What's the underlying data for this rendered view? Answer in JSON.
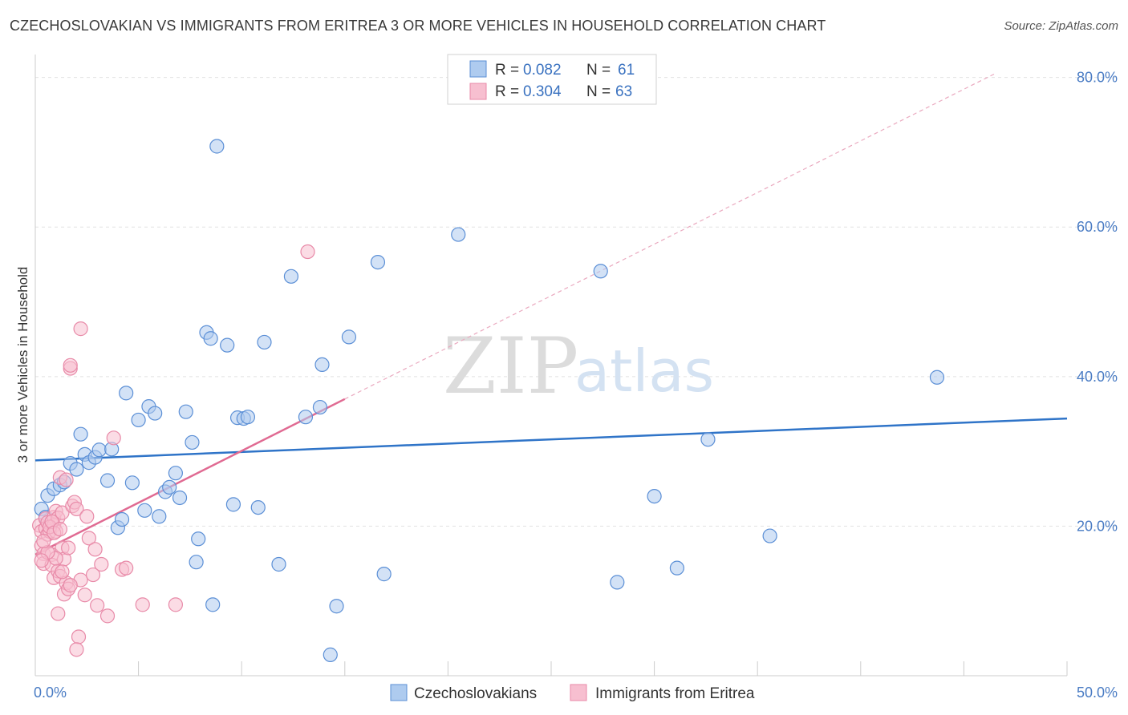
{
  "title": "CZECHOSLOVAKIAN VS IMMIGRANTS FROM ERITREA 3 OR MORE VEHICLES IN HOUSEHOLD CORRELATION CHART",
  "source": "Source: ZipAtlas.com",
  "watermark": {
    "zip": "ZIP",
    "atlas": "atlas"
  },
  "colors": {
    "czech_fill": "#aecbef",
    "czech_stroke": "#5b8fd6",
    "czech_line": "#2f74c8",
    "eritrea_fill": "#f7bfd0",
    "eritrea_stroke": "#e88aa8",
    "eritrea_line": "#e06a92",
    "grid": "#e2e2e2",
    "tick_label": "#4a7cc4"
  },
  "legend": {
    "rows": [
      {
        "r_label": "R =",
        "r_value": "0.082",
        "n_label": "N =",
        "n_value": "61"
      },
      {
        "r_label": "R =",
        "r_value": "0.304",
        "n_label": "N =",
        "n_value": "63"
      }
    ]
  },
  "chart_data": {
    "type": "scatter",
    "ylabel": "3 or more Vehicles in Household",
    "xlabel": "",
    "xlim": [
      0,
      50
    ],
    "ylim": [
      0,
      82
    ],
    "x_tick_labels": [
      {
        "value": 0,
        "label": "0.0%"
      },
      {
        "value": 50,
        "label": "50.0%"
      }
    ],
    "y_tick_labels": [
      {
        "value": 20,
        "label": "20.0%"
      },
      {
        "value": 40,
        "label": "40.0%"
      },
      {
        "value": 60,
        "label": "60.0%"
      },
      {
        "value": 80,
        "label": "80.0%"
      }
    ],
    "grid": true,
    "legend_position": "top-center",
    "series": [
      {
        "name": "Czechoslovakians",
        "trend": {
          "x": [
            0,
            50
          ],
          "y": [
            28.8,
            34.4
          ],
          "style": "solid"
        },
        "points": [
          [
            0.3,
            22.3
          ],
          [
            0.6,
            24.1
          ],
          [
            0.9,
            25.0
          ],
          [
            1.2,
            25.5
          ],
          [
            1.4,
            25.9
          ],
          [
            1.7,
            28.4
          ],
          [
            2.0,
            27.6
          ],
          [
            2.2,
            32.3
          ],
          [
            2.4,
            29.6
          ],
          [
            2.6,
            28.5
          ],
          [
            2.9,
            29.2
          ],
          [
            3.1,
            30.2
          ],
          [
            3.7,
            30.3
          ],
          [
            3.5,
            26.1
          ],
          [
            4.0,
            19.8
          ],
          [
            4.2,
            20.9
          ],
          [
            4.4,
            37.8
          ],
          [
            4.7,
            25.8
          ],
          [
            5.0,
            34.2
          ],
          [
            5.3,
            22.1
          ],
          [
            5.5,
            36.0
          ],
          [
            5.8,
            35.1
          ],
          [
            6.0,
            21.3
          ],
          [
            6.3,
            24.6
          ],
          [
            6.5,
            25.2
          ],
          [
            6.8,
            27.1
          ],
          [
            7.0,
            23.8
          ],
          [
            7.3,
            35.3
          ],
          [
            7.6,
            31.2
          ],
          [
            7.9,
            18.3
          ],
          [
            7.8,
            15.2
          ],
          [
            8.3,
            45.9
          ],
          [
            8.5,
            45.1
          ],
          [
            8.6,
            9.5
          ],
          [
            8.8,
            70.8
          ],
          [
            9.3,
            44.2
          ],
          [
            9.6,
            22.9
          ],
          [
            9.8,
            34.5
          ],
          [
            10.1,
            34.4
          ],
          [
            10.3,
            34.6
          ],
          [
            10.8,
            22.5
          ],
          [
            11.1,
            44.6
          ],
          [
            11.8,
            14.9
          ],
          [
            12.4,
            53.4
          ],
          [
            13.1,
            34.6
          ],
          [
            13.8,
            35.9
          ],
          [
            13.9,
            41.6
          ],
          [
            14.3,
            2.8
          ],
          [
            14.6,
            9.3
          ],
          [
            15.2,
            45.3
          ],
          [
            16.6,
            55.3
          ],
          [
            16.9,
            13.6
          ],
          [
            20.5,
            59.0
          ],
          [
            27.4,
            54.1
          ],
          [
            28.2,
            12.5
          ],
          [
            30.0,
            24.0
          ],
          [
            31.1,
            14.4
          ],
          [
            32.6,
            31.6
          ],
          [
            35.6,
            18.7
          ],
          [
            43.7,
            39.9
          ],
          [
            0.5,
            21.2
          ]
        ]
      },
      {
        "name": "Immigrants from Eritrea",
        "trend": {
          "x": [
            0,
            15
          ],
          "y": [
            16.2,
            37.0
          ],
          "style": "solid"
        },
        "trend_extension": {
          "x": [
            15,
            46.5
          ],
          "y": [
            37.0,
            80.5
          ],
          "style": "dashed"
        },
        "points": [
          [
            0.2,
            20.1
          ],
          [
            0.3,
            19.3
          ],
          [
            0.3,
            17.4
          ],
          [
            0.4,
            16.3
          ],
          [
            0.4,
            15.0
          ],
          [
            0.5,
            21.0
          ],
          [
            0.5,
            19.7
          ],
          [
            0.6,
            18.9
          ],
          [
            0.6,
            20.5
          ],
          [
            0.7,
            19.3
          ],
          [
            0.8,
            16.2
          ],
          [
            0.8,
            14.8
          ],
          [
            0.9,
            21.2
          ],
          [
            0.9,
            20.1
          ],
          [
            0.9,
            13.1
          ],
          [
            1.0,
            19.3
          ],
          [
            1.0,
            22.0
          ],
          [
            1.1,
            21.1
          ],
          [
            1.1,
            14.0
          ],
          [
            1.1,
            8.3
          ],
          [
            1.2,
            26.5
          ],
          [
            1.2,
            13.3
          ],
          [
            1.3,
            17.1
          ],
          [
            1.3,
            21.8
          ],
          [
            1.4,
            15.6
          ],
          [
            1.4,
            10.9
          ],
          [
            1.5,
            12.4
          ],
          [
            1.6,
            17.1
          ],
          [
            1.6,
            11.6
          ],
          [
            1.7,
            41.1
          ],
          [
            1.7,
            41.5
          ],
          [
            1.8,
            22.7
          ],
          [
            1.9,
            23.2
          ],
          [
            2.0,
            22.3
          ],
          [
            2.1,
            5.2
          ],
          [
            2.2,
            12.8
          ],
          [
            2.2,
            46.4
          ],
          [
            2.4,
            10.8
          ],
          [
            2.5,
            21.3
          ],
          [
            2.6,
            18.4
          ],
          [
            2.8,
            13.5
          ],
          [
            2.9,
            16.9
          ],
          [
            3.0,
            9.4
          ],
          [
            3.2,
            14.9
          ],
          [
            3.5,
            8.0
          ],
          [
            3.8,
            31.8
          ],
          [
            4.2,
            14.2
          ],
          [
            4.4,
            14.4
          ],
          [
            5.2,
            9.5
          ],
          [
            6.8,
            9.5
          ],
          [
            13.2,
            56.7
          ],
          [
            1.5,
            26.2
          ],
          [
            0.7,
            19.9
          ],
          [
            0.8,
            20.6
          ],
          [
            0.9,
            19.1
          ],
          [
            1.0,
            15.7
          ],
          [
            1.2,
            19.6
          ],
          [
            0.6,
            16.5
          ],
          [
            2.0,
            3.5
          ],
          [
            0.4,
            18.0
          ],
          [
            0.3,
            15.4
          ],
          [
            1.3,
            13.9
          ],
          [
            1.7,
            12.1
          ]
        ]
      }
    ]
  }
}
